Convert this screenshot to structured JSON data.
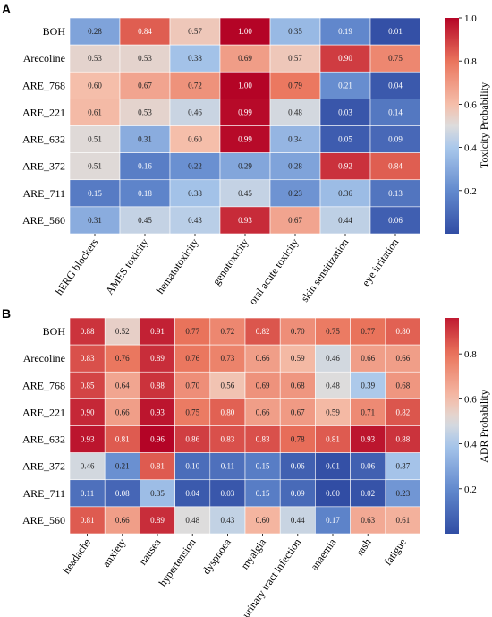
{
  "chart_data": [
    {
      "panel": "A",
      "type": "heatmap",
      "rows": [
        "BOH",
        "Arecoline",
        "ARE_768",
        "ARE_221",
        "ARE_632",
        "ARE_372",
        "ARE_711",
        "ARE_560"
      ],
      "columns": [
        "hERG blockers",
        "AMES toxicity",
        "hematotoxicity",
        "genotoxicity",
        "oral acute toxicity",
        "skin sensitization",
        "eye irritation"
      ],
      "values": [
        [
          0.28,
          0.84,
          0.57,
          1.0,
          0.35,
          0.19,
          0.01
        ],
        [
          0.53,
          0.53,
          0.38,
          0.69,
          0.57,
          0.9,
          0.75
        ],
        [
          0.6,
          0.67,
          0.72,
          1.0,
          0.79,
          0.21,
          0.04
        ],
        [
          0.61,
          0.53,
          0.46,
          0.99,
          0.48,
          0.03,
          0.14
        ],
        [
          0.51,
          0.31,
          0.6,
          0.99,
          0.34,
          0.05,
          0.09
        ],
        [
          0.51,
          0.16,
          0.22,
          0.29,
          0.28,
          0.92,
          0.84
        ],
        [
          0.15,
          0.18,
          0.38,
          0.45,
          0.23,
          0.36,
          0.13
        ],
        [
          0.31,
          0.45,
          0.43,
          0.93,
          0.67,
          0.44,
          0.06
        ]
      ],
      "colorbar": {
        "label": "Toxicity Probability",
        "ticks": [
          "0.2",
          "0.4",
          "0.6",
          "0.8",
          "1.0"
        ],
        "range": [
          0.0,
          1.0
        ]
      }
    },
    {
      "panel": "B",
      "type": "heatmap",
      "rows": [
        "BOH",
        "Arecoline",
        "ARE_768",
        "ARE_221",
        "ARE_632",
        "ARE_372",
        "ARE_711",
        "ARE_560"
      ],
      "columns": [
        "headache",
        "anxiety",
        "nausea",
        "hypertension",
        "dyspnoea",
        "myalgia",
        "urinary tract infection",
        "anaemia",
        "rash",
        "fatigue"
      ],
      "values": [
        [
          0.88,
          0.52,
          0.91,
          0.77,
          0.72,
          0.82,
          0.7,
          0.75,
          0.77,
          0.8
        ],
        [
          0.83,
          0.76,
          0.89,
          0.76,
          0.73,
          0.66,
          0.59,
          0.46,
          0.66,
          0.66
        ],
        [
          0.85,
          0.64,
          0.88,
          0.7,
          0.56,
          0.69,
          0.68,
          0.48,
          0.39,
          0.68
        ],
        [
          0.9,
          0.66,
          0.93,
          0.75,
          0.8,
          0.66,
          0.67,
          0.59,
          0.71,
          0.82
        ],
        [
          0.93,
          0.81,
          0.96,
          0.86,
          0.83,
          0.83,
          0.78,
          0.81,
          0.93,
          0.88
        ],
        [
          0.46,
          0.21,
          0.81,
          0.1,
          0.11,
          0.15,
          0.06,
          0.01,
          0.06,
          0.37
        ],
        [
          0.11,
          0.08,
          0.35,
          0.04,
          0.03,
          0.15,
          0.09,
          0.0,
          0.02,
          0.23
        ],
        [
          0.81,
          0.66,
          0.89,
          0.48,
          0.43,
          0.6,
          0.44,
          0.17,
          0.63,
          0.61
        ]
      ],
      "colorbar": {
        "label": "ADR Probability",
        "ticks": [
          "0.2",
          "0.4",
          "0.6",
          "0.8"
        ],
        "range": [
          0.0,
          0.96
        ]
      }
    }
  ]
}
